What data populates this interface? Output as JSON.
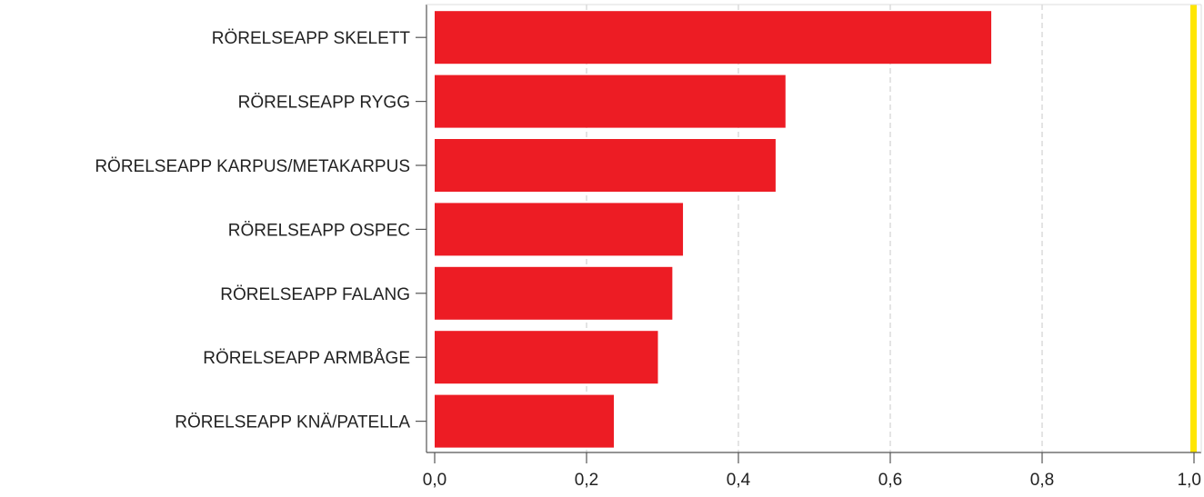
{
  "chart_data": {
    "type": "bar",
    "orientation": "horizontal",
    "categories": [
      "RÖRELSEAPP SKELETT",
      "RÖRELSEAPP RYGG",
      "RÖRELSEAPP KARPUS/METAKARPUS",
      "RÖRELSEAPP OSPEC",
      "RÖRELSEAPP FALANG",
      "RÖRELSEAPP ARMBÅGE",
      "RÖRELSEAPP KNÄ/PATELLA"
    ],
    "values": [
      0.733,
      0.462,
      0.449,
      0.327,
      0.313,
      0.294,
      0.236
    ],
    "xlim": [
      0,
      1.0
    ],
    "xticks": [
      0.0,
      0.2,
      0.4,
      0.6,
      0.8,
      1.0
    ],
    "xtick_labels": [
      "0,0",
      "0,2",
      "0,4",
      "0,6",
      "0,8",
      "1,0"
    ],
    "reference_line": 1.0,
    "grid": "vertical-dashed",
    "colors": {
      "bar": "#ed1c24",
      "reference_line": "#ffe600",
      "grid": "#c8c8c8",
      "axis": "#555555"
    }
  }
}
